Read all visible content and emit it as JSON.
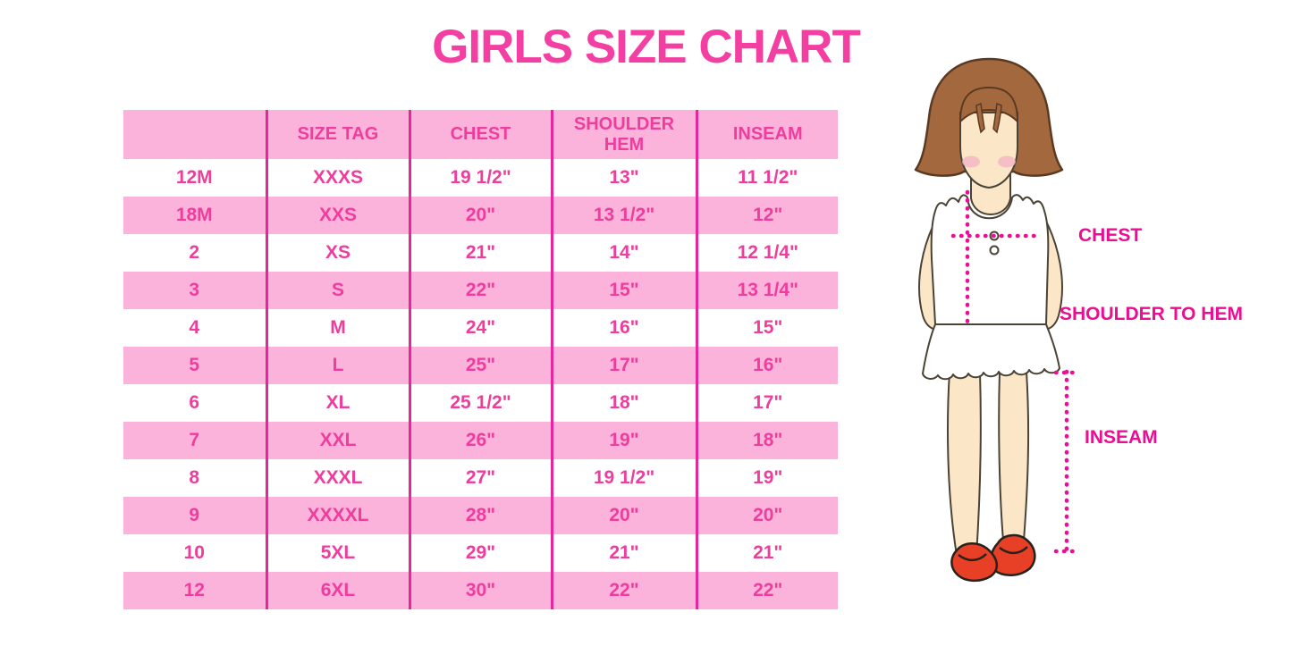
{
  "title": "GIRLS SIZE CHART",
  "table": {
    "headers": [
      "",
      "SIZE TAG",
      "CHEST",
      "SHOULDER HEM",
      "INSEAM"
    ],
    "rows": [
      [
        "12M",
        "XXXS",
        "19 1/2\"",
        "13\"",
        "11 1/2\""
      ],
      [
        "18M",
        "XXS",
        "20\"",
        "13 1/2\"",
        "12\""
      ],
      [
        "2",
        "XS",
        "21\"",
        "14\"",
        "12 1/4\""
      ],
      [
        "3",
        "S",
        "22\"",
        "15\"",
        "13 1/4\""
      ],
      [
        "4",
        "M",
        "24\"",
        "16\"",
        "15\""
      ],
      [
        "5",
        "L",
        "25\"",
        "17\"",
        "16\""
      ],
      [
        "6",
        "XL",
        "25 1/2\"",
        "18\"",
        "17\""
      ],
      [
        "7",
        "XXL",
        "26\"",
        "19\"",
        "18\""
      ],
      [
        "8",
        "XXXL",
        "27\"",
        "19 1/2\"",
        "19\""
      ],
      [
        "9",
        "XXXXL",
        "28\"",
        "20\"",
        "20\""
      ],
      [
        "10",
        "5XL",
        "29\"",
        "21\"",
        "21\""
      ],
      [
        "12",
        "6XL",
        "30\"",
        "22\"",
        "22\""
      ]
    ]
  },
  "figure": {
    "chest_label": "CHEST",
    "shoulder_to_hem_label": "SHOULDER TO HEM",
    "inseam_label": "INSEAM"
  },
  "colors": {
    "title_pink": "#F43FA2",
    "table_text_pink": "#EF3D9D",
    "row_pink": "#FBB3DB",
    "divider_pink": "#E9259B",
    "label_pink": "#EC0E92",
    "hair_brown": "#A4683F",
    "skin_tone": "#FBE6C8",
    "blush_pink": "#F5B3C5",
    "shoe_red": "#E84026"
  }
}
